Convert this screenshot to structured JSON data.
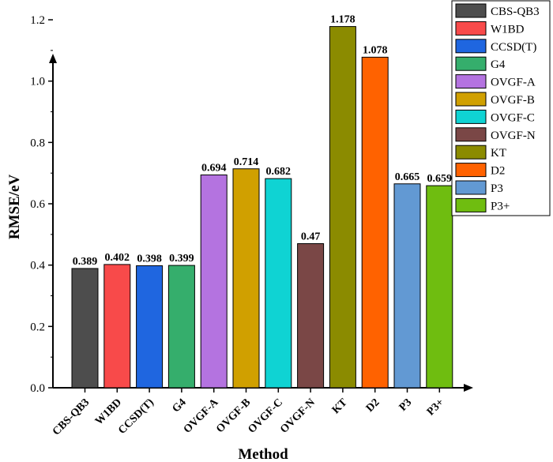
{
  "chart_data": {
    "type": "bar",
    "title": "",
    "xlabel": "Method",
    "ylabel": "RMSE/eV",
    "ylim": [
      0,
      1.3
    ],
    "yticks": [
      0.0,
      0.2,
      0.4,
      0.6,
      0.8,
      1.0,
      1.2
    ],
    "ytick_labels": [
      "0.0",
      "0.2",
      "0.4",
      "0.6",
      "0.8",
      "1.0",
      "1.2"
    ],
    "grid": false,
    "legend_position": "top-right",
    "categories": [
      "CBS-QB3",
      "W1BD",
      "CCSD(T)",
      "G4",
      "OVGF-A",
      "OVGF-B",
      "OVGF-C",
      "OVGF-N",
      "KT",
      "D2",
      "P3",
      "P3+"
    ],
    "values": [
      0.389,
      0.402,
      0.398,
      0.399,
      0.694,
      0.714,
      0.682,
      0.47,
      1.178,
      1.078,
      0.665,
      0.659
    ],
    "value_labels": [
      "0.389",
      "0.402",
      "0.398",
      "0.399",
      "0.694",
      "0.714",
      "0.682",
      "0.47",
      "1.178",
      "1.078",
      "0.665",
      "0.659"
    ],
    "colors": [
      "#4d4d4d",
      "#f84a4a",
      "#1f66e0",
      "#35ae6c",
      "#b473e0",
      "#d0a000",
      "#0fd3d3",
      "#7a4746",
      "#8b8b00",
      "#ff6200",
      "#6299d3",
      "#6fbd10"
    ],
    "legend": [
      "CBS-QB3",
      "W1BD",
      "CCSD(T)",
      "G4",
      "OVGF-A",
      "OVGF-B",
      "OVGF-C",
      "OVGF-N",
      "KT",
      "D2",
      "P3",
      "P3+"
    ]
  }
}
